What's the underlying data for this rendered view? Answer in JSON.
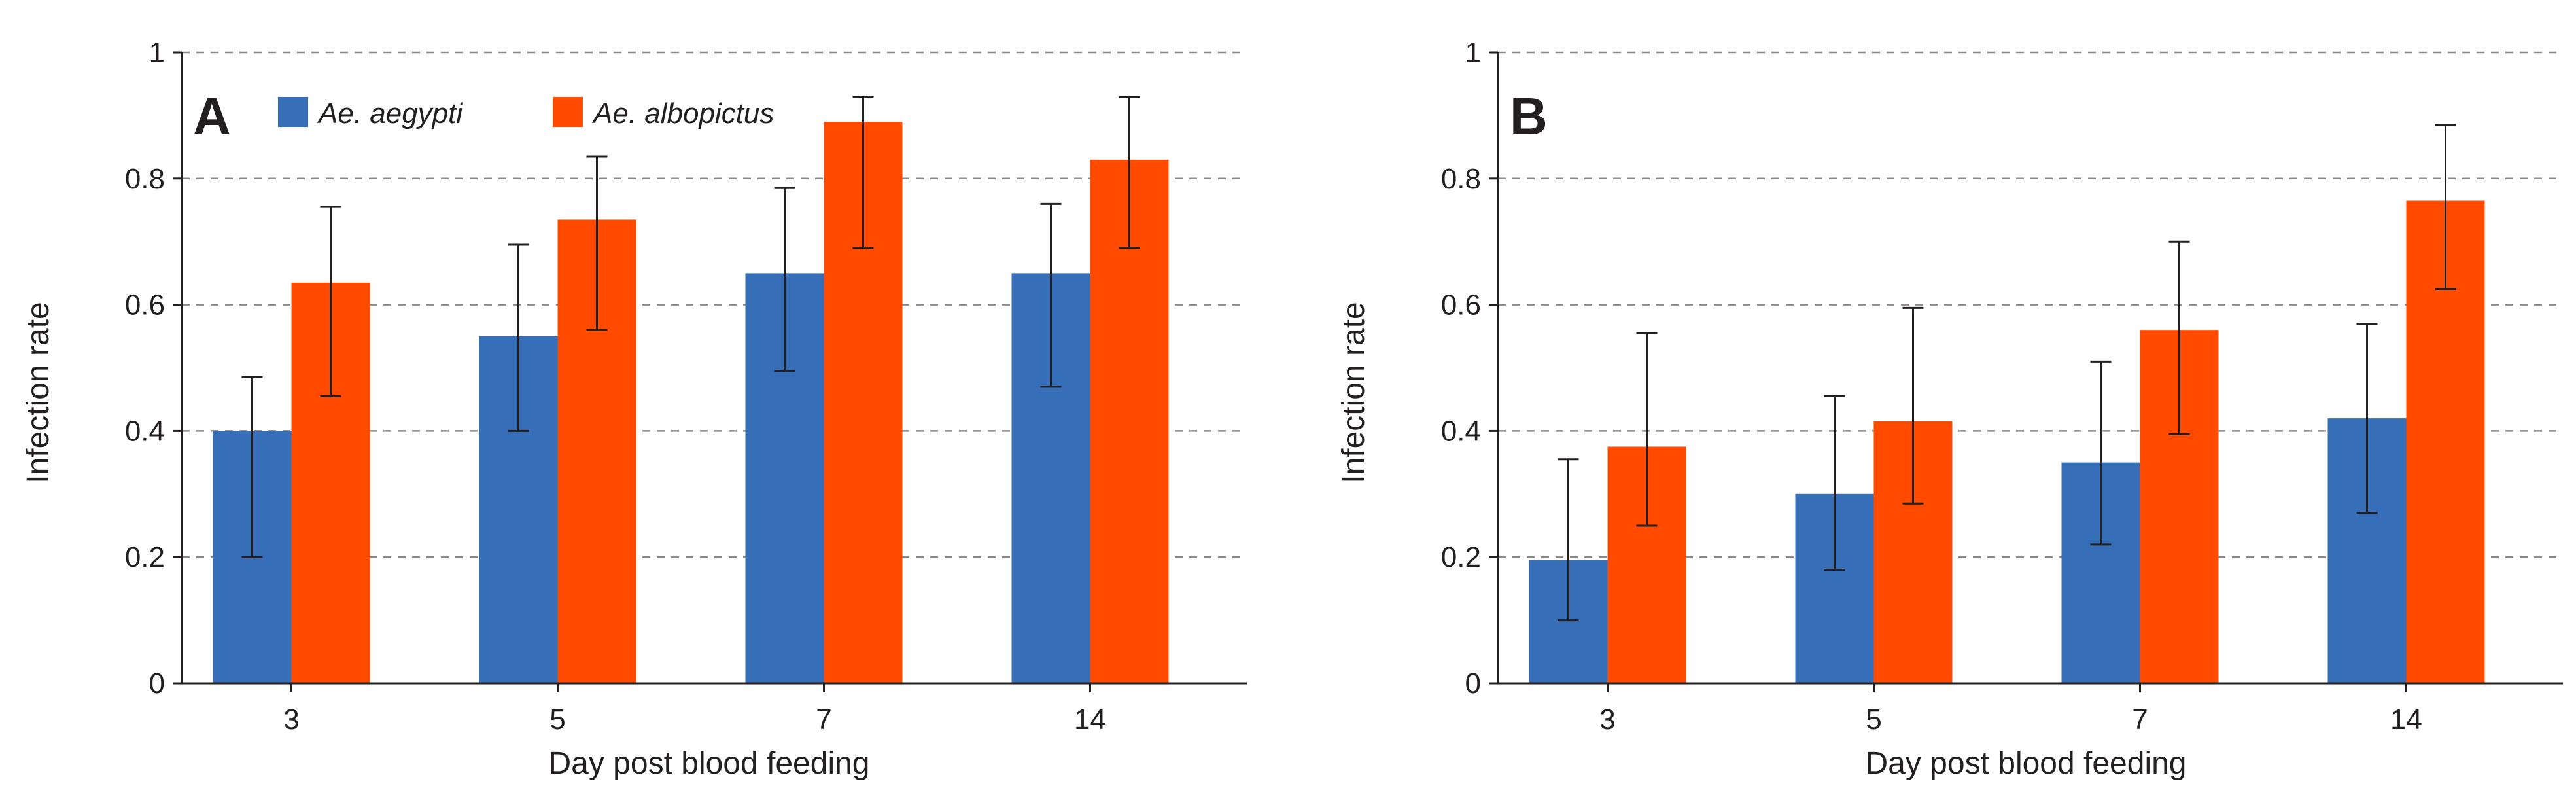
{
  "colors": {
    "aegypti": "#376eb8",
    "albopictus": "#ff4a00"
  },
  "legend": {
    "aegypti": "Ae. aegypti",
    "albopictus": "Ae. albopictus"
  },
  "chart_data": [
    {
      "type": "bar",
      "panel": "A",
      "categories": [
        "3",
        "5",
        "7",
        "14"
      ],
      "xlabel": "Day post blood feeding",
      "ylabel": "Infection rate",
      "ylim": [
        0,
        1
      ],
      "yticks": [
        "0",
        "0.2",
        "0.4",
        "0.6",
        "0.8",
        "1"
      ],
      "grid": "dashed horizontal",
      "legend_position": "top-left",
      "series": [
        {
          "name": "Ae. aegypti",
          "key": "aegypti",
          "values": [
            0.4,
            0.55,
            0.65,
            0.65
          ],
          "err_low": [
            0.2,
            0.4,
            0.495,
            0.47
          ],
          "err_high": [
            0.485,
            0.695,
            0.785,
            0.76
          ]
        },
        {
          "name": "Ae. albopictus",
          "key": "albopictus",
          "values": [
            0.635,
            0.735,
            0.89,
            0.83
          ],
          "err_low": [
            0.455,
            0.56,
            0.69,
            0.69
          ],
          "err_high": [
            0.755,
            0.835,
            0.93,
            0.93
          ]
        }
      ]
    },
    {
      "type": "bar",
      "panel": "B",
      "categories": [
        "3",
        "5",
        "7",
        "14"
      ],
      "xlabel": "Day post blood feeding",
      "ylabel": "Infection rate",
      "ylim": [
        0,
        1
      ],
      "yticks": [
        "0",
        "0.2",
        "0.4",
        "0.6",
        "0.8",
        "1"
      ],
      "grid": "dashed horizontal",
      "series": [
        {
          "name": "Ae. aegypti",
          "key": "aegypti",
          "values": [
            0.195,
            0.3,
            0.35,
            0.42
          ],
          "err_low": [
            0.1,
            0.18,
            0.22,
            0.27
          ],
          "err_high": [
            0.355,
            0.455,
            0.51,
            0.57
          ]
        },
        {
          "name": "Ae. albopictus",
          "key": "albopictus",
          "values": [
            0.375,
            0.415,
            0.56,
            0.765
          ],
          "err_low": [
            0.25,
            0.285,
            0.395,
            0.625
          ],
          "err_high": [
            0.555,
            0.595,
            0.7,
            0.885
          ]
        }
      ]
    }
  ]
}
